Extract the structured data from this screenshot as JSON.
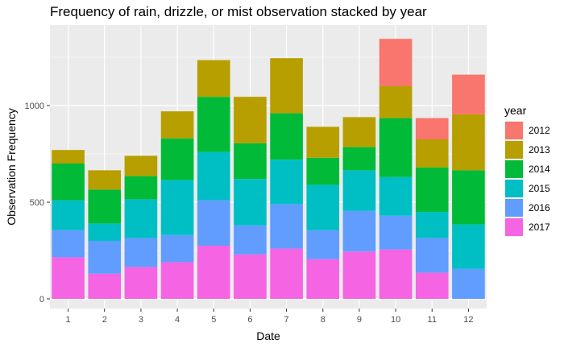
{
  "chart_data": {
    "type": "bar",
    "stacked": true,
    "title": "Frequency of rain, drizzle, or mist observation stacked by year",
    "xlabel": "Date",
    "ylabel": "Observation Frequency",
    "categories": [
      "1",
      "2",
      "3",
      "4",
      "5",
      "6",
      "7",
      "8",
      "9",
      "10",
      "11",
      "12"
    ],
    "ylim": [
      0,
      1400
    ],
    "yticks": [
      0,
      500,
      1000
    ],
    "grid": true,
    "legend": {
      "title": "year",
      "placement": "right"
    },
    "series": [
      {
        "name": "2017",
        "color": "#F564E3",
        "values": [
          215,
          130,
          165,
          190,
          275,
          230,
          260,
          205,
          245,
          255,
          135,
          0
        ]
      },
      {
        "name": "2016",
        "color": "#619CFF",
        "values": [
          140,
          170,
          150,
          140,
          235,
          150,
          230,
          150,
          210,
          175,
          180,
          155
        ]
      },
      {
        "name": "2015",
        "color": "#00BFC4",
        "values": [
          155,
          90,
          200,
          285,
          250,
          240,
          230,
          235,
          210,
          200,
          135,
          230
        ]
      },
      {
        "name": "2014",
        "color": "#00BA38",
        "values": [
          190,
          175,
          120,
          215,
          285,
          185,
          240,
          140,
          120,
          305,
          230,
          280
        ]
      },
      {
        "name": "2013",
        "color": "#B79F00",
        "values": [
          70,
          100,
          105,
          140,
          190,
          240,
          285,
          160,
          155,
          165,
          145,
          290
        ]
      },
      {
        "name": "2012",
        "color": "#F8766D",
        "values": [
          0,
          0,
          0,
          0,
          0,
          0,
          0,
          0,
          0,
          245,
          110,
          205
        ]
      }
    ]
  }
}
